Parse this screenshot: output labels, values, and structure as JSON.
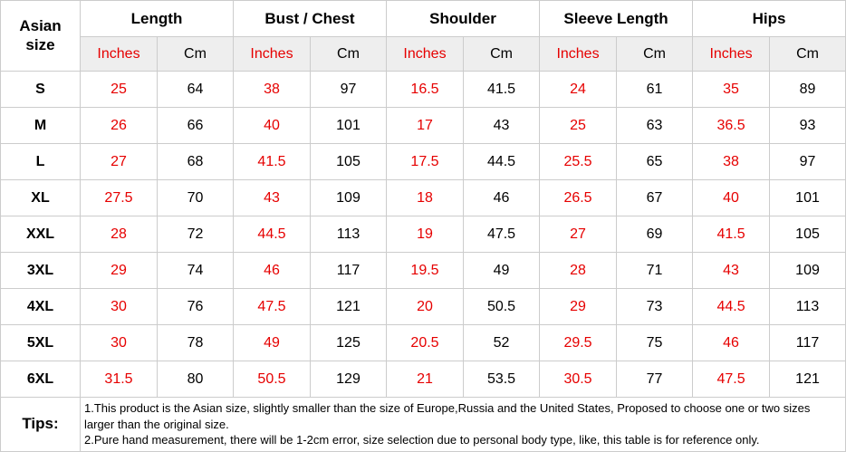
{
  "table": {
    "corner_label": "Asian size",
    "groups": [
      {
        "label": "Length"
      },
      {
        "label": "Bust / Chest"
      },
      {
        "label": "Shoulder"
      },
      {
        "label": "Sleeve Length"
      },
      {
        "label": "Hips"
      }
    ],
    "unit_labels": {
      "inches": "Inches",
      "cm": "Cm"
    },
    "tips": {
      "label": "Tips:",
      "lines": [
        "1.This product is the Asian size, slightly smaller than the size of Europe,Russia and the United States, Proposed to choose one or two sizes larger than the original size.",
        "2.Pure hand measurement, there will be 1-2cm error, size selection due to personal body type, like, this table is for reference only."
      ]
    }
  },
  "colors": {
    "accent_red": "#e60000",
    "unit_row_bg": "#eeeeee",
    "border": "#cccccc"
  },
  "chart_data": {
    "type": "table",
    "row_header": "Asian size",
    "column_groups": [
      "Length",
      "Bust / Chest",
      "Shoulder",
      "Sleeve Length",
      "Hips"
    ],
    "units_per_group": [
      "Inches",
      "Cm"
    ],
    "sizes": [
      "S",
      "M",
      "L",
      "XL",
      "XXL",
      "3XL",
      "4XL",
      "5XL",
      "6XL"
    ],
    "rows": [
      [
        25,
        64,
        38,
        97,
        16.5,
        41.5,
        24,
        61,
        35,
        89
      ],
      [
        26,
        66,
        40,
        101,
        17,
        43,
        25,
        63,
        36.5,
        93
      ],
      [
        27,
        68,
        41.5,
        105,
        17.5,
        44.5,
        25.5,
        65,
        38,
        97
      ],
      [
        27.5,
        70,
        43,
        109,
        18,
        46,
        26.5,
        67,
        40,
        101
      ],
      [
        28,
        72,
        44.5,
        113,
        19,
        47.5,
        27,
        69,
        41.5,
        105
      ],
      [
        29,
        74,
        46,
        117,
        19.5,
        49,
        28,
        71,
        43,
        109
      ],
      [
        30,
        76,
        47.5,
        121,
        20,
        50.5,
        29,
        73,
        44.5,
        113
      ],
      [
        30,
        78,
        49,
        125,
        20.5,
        52,
        29.5,
        75,
        46,
        117
      ],
      [
        31.5,
        80,
        50.5,
        129,
        21,
        53.5,
        30.5,
        77,
        47.5,
        121
      ]
    ]
  }
}
